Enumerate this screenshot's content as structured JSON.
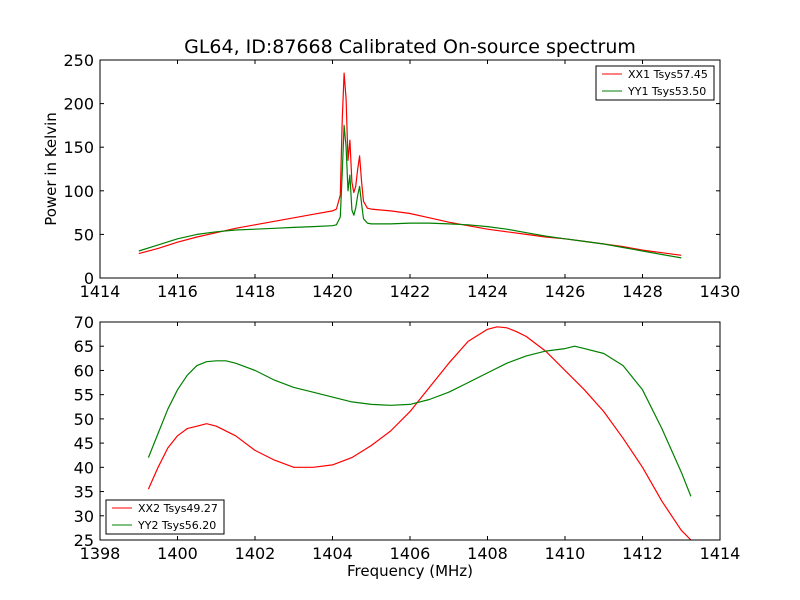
{
  "chart_data": [
    {
      "type": "line",
      "title": "GL64, ID:87668 Calibrated On-source spectrum",
      "xlabel": "",
      "ylabel": "Power in Kelvin",
      "xlim": [
        1414,
        1430
      ],
      "ylim": [
        0,
        250
      ],
      "xticks": [
        1414,
        1416,
        1418,
        1420,
        1422,
        1424,
        1426,
        1428,
        1430
      ],
      "yticks": [
        0,
        50,
        100,
        150,
        200,
        250
      ],
      "grid": false,
      "legend_position": "top-right",
      "series": [
        {
          "name": "XX1 Tsys57.45",
          "color": "#ff0000",
          "x": [
            1415.0,
            1415.5,
            1416.0,
            1416.5,
            1417.0,
            1417.5,
            1418.0,
            1418.5,
            1419.0,
            1419.5,
            1420.0,
            1420.1,
            1420.2,
            1420.25,
            1420.3,
            1420.35,
            1420.4,
            1420.45,
            1420.5,
            1420.55,
            1420.6,
            1420.65,
            1420.7,
            1420.75,
            1420.8,
            1420.9,
            1421.0,
            1421.5,
            1422.0,
            1422.5,
            1423.0,
            1423.5,
            1424.0,
            1424.5,
            1425.0,
            1425.5,
            1426.0,
            1426.5,
            1427.0,
            1427.5,
            1428.0,
            1428.5,
            1429.0
          ],
          "y": [
            28,
            34,
            41,
            47,
            52,
            57,
            61,
            65,
            69,
            73,
            77,
            79,
            95,
            180,
            235,
            205,
            135,
            158,
            110,
            98,
            105,
            125,
            140,
            110,
            88,
            80,
            79,
            77,
            74,
            69,
            64,
            60,
            56,
            53,
            50,
            47,
            45,
            42,
            39,
            36,
            32,
            29,
            26
          ]
        },
        {
          "name": "YY1 Tsys53.50",
          "color": "#008000",
          "x": [
            1415.0,
            1415.5,
            1416.0,
            1416.5,
            1417.0,
            1417.5,
            1418.0,
            1418.5,
            1419.0,
            1419.5,
            1420.0,
            1420.1,
            1420.2,
            1420.25,
            1420.3,
            1420.35,
            1420.4,
            1420.45,
            1420.5,
            1420.55,
            1420.6,
            1420.65,
            1420.7,
            1420.75,
            1420.8,
            1420.9,
            1421.0,
            1421.5,
            1422.0,
            1422.5,
            1423.0,
            1423.5,
            1424.0,
            1424.5,
            1425.0,
            1425.5,
            1426.0,
            1426.5,
            1427.0,
            1427.5,
            1428.0,
            1428.5,
            1429.0
          ],
          "y": [
            31,
            38,
            45,
            50,
            53,
            55,
            56,
            57,
            58,
            59,
            60,
            61,
            70,
            120,
            175,
            150,
            100,
            118,
            78,
            72,
            80,
            95,
            105,
            85,
            68,
            63,
            62,
            62,
            63,
            63,
            62,
            61,
            59,
            56,
            52,
            48,
            45,
            42,
            39,
            35,
            31,
            27,
            23
          ]
        }
      ]
    },
    {
      "type": "line",
      "title": "",
      "xlabel": "Frequency (MHz)",
      "ylabel": "",
      "xlim": [
        1398,
        1414
      ],
      "ylim": [
        25,
        70
      ],
      "xticks": [
        1398,
        1400,
        1402,
        1404,
        1406,
        1408,
        1410,
        1412,
        1414
      ],
      "yticks": [
        25,
        30,
        35,
        40,
        45,
        50,
        55,
        60,
        65,
        70
      ],
      "grid": false,
      "legend_position": "bottom-left",
      "series": [
        {
          "name": "XX2 Tsys49.27",
          "color": "#ff0000",
          "x": [
            1399.25,
            1399.5,
            1399.75,
            1400.0,
            1400.25,
            1400.5,
            1400.75,
            1401.0,
            1401.5,
            1402.0,
            1402.5,
            1403.0,
            1403.5,
            1404.0,
            1404.5,
            1405.0,
            1405.5,
            1406.0,
            1406.5,
            1407.0,
            1407.5,
            1408.0,
            1408.25,
            1408.5,
            1408.75,
            1409.0,
            1409.5,
            1410.0,
            1410.5,
            1411.0,
            1411.5,
            1412.0,
            1412.5,
            1413.0,
            1413.25
          ],
          "y": [
            35.5,
            40,
            44,
            46.5,
            48,
            48.5,
            49,
            48.5,
            46.5,
            43.5,
            41.5,
            40,
            40,
            40.5,
            42,
            44.5,
            47.5,
            51.5,
            56.5,
            61.5,
            66,
            68.5,
            69,
            68.8,
            68,
            67,
            64,
            60,
            56,
            51.5,
            46,
            40,
            33,
            27,
            25
          ]
        },
        {
          "name": "YY2 Tsys56.20",
          "color": "#008000",
          "x": [
            1399.25,
            1399.5,
            1399.75,
            1400.0,
            1400.25,
            1400.5,
            1400.75,
            1401.0,
            1401.25,
            1401.5,
            1402.0,
            1402.5,
            1403.0,
            1403.5,
            1404.0,
            1404.5,
            1405.0,
            1405.5,
            1406.0,
            1406.5,
            1407.0,
            1407.5,
            1408.0,
            1408.5,
            1409.0,
            1409.5,
            1410.0,
            1410.25,
            1410.5,
            1411.0,
            1411.5,
            1412.0,
            1412.5,
            1413.0,
            1413.25
          ],
          "y": [
            42,
            47,
            52,
            56,
            59,
            61,
            61.8,
            62,
            62,
            61.5,
            60,
            58,
            56.5,
            55.5,
            54.5,
            53.5,
            53,
            52.8,
            53,
            54,
            55.5,
            57.5,
            59.5,
            61.5,
            63,
            64,
            64.5,
            65,
            64.5,
            63.5,
            61,
            56,
            48,
            39,
            34
          ]
        }
      ]
    }
  ]
}
